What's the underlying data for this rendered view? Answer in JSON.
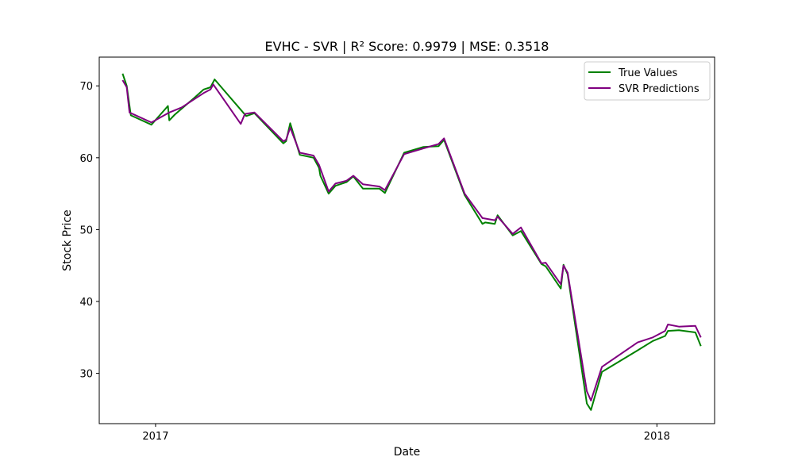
{
  "chart_data": {
    "type": "line",
    "title": "EVHC - SVR | R² Score: 0.9979 | MSE: 0.3518",
    "xlabel": "Date",
    "ylabel": "Stock Price",
    "xlim": [
      "2016-11-21",
      "2018-02-12"
    ],
    "ylim": [
      23,
      74
    ],
    "x_ticks": [
      {
        "date": "2017-01-01",
        "label": "2017"
      },
      {
        "date": "2018-01-01",
        "label": "2018"
      }
    ],
    "y_ticks": [
      30,
      40,
      50,
      60,
      70
    ],
    "grid": false,
    "legend_position": "top-right",
    "series": [
      {
        "name": "True Values",
        "color": "#008000",
        "points": [
          [
            "2016-12-08",
            71.7
          ],
          [
            "2016-12-11",
            70.0
          ],
          [
            "2016-12-14",
            65.9
          ],
          [
            "2016-12-29",
            64.6
          ],
          [
            "2017-01-10",
            67.2
          ],
          [
            "2017-01-11",
            65.2
          ],
          [
            "2017-01-15",
            66.0
          ],
          [
            "2017-01-29",
            68.3
          ],
          [
            "2017-02-05",
            69.5
          ],
          [
            "2017-02-10",
            69.8
          ],
          [
            "2017-02-13",
            70.9
          ],
          [
            "2017-03-08",
            65.8
          ],
          [
            "2017-03-14",
            66.2
          ],
          [
            "2017-04-04",
            62.0
          ],
          [
            "2017-04-06",
            62.3
          ],
          [
            "2017-04-09",
            64.8
          ],
          [
            "2017-04-16",
            60.4
          ],
          [
            "2017-04-26",
            60.0
          ],
          [
            "2017-04-30",
            58.6
          ],
          [
            "2017-05-01",
            57.5
          ],
          [
            "2017-05-07",
            55.0
          ],
          [
            "2017-05-12",
            56.1
          ],
          [
            "2017-05-20",
            56.6
          ],
          [
            "2017-05-25",
            57.4
          ],
          [
            "2017-06-01",
            55.7
          ],
          [
            "2017-06-13",
            55.7
          ],
          [
            "2017-06-17",
            55.1
          ],
          [
            "2017-07-01",
            60.7
          ],
          [
            "2017-07-15",
            61.5
          ],
          [
            "2017-07-26",
            61.6
          ],
          [
            "2017-07-30",
            62.5
          ],
          [
            "2017-08-14",
            54.8
          ],
          [
            "2017-08-27",
            50.8
          ],
          [
            "2017-08-29",
            51.0
          ],
          [
            "2017-09-05",
            50.8
          ],
          [
            "2017-09-07",
            52.0
          ],
          [
            "2017-09-18",
            49.2
          ],
          [
            "2017-09-24",
            49.8
          ],
          [
            "2017-10-09",
            45.2
          ],
          [
            "2017-10-12",
            44.9
          ],
          [
            "2017-10-23",
            41.8
          ],
          [
            "2017-10-25",
            45.1
          ],
          [
            "2017-10-28",
            43.8
          ],
          [
            "2017-11-11",
            25.8
          ],
          [
            "2017-11-14",
            24.9
          ],
          [
            "2017-11-22",
            30.2
          ],
          [
            "2017-12-18",
            33.2
          ],
          [
            "2017-12-29",
            34.5
          ],
          [
            "2018-01-07",
            35.2
          ],
          [
            "2018-01-09",
            35.9
          ],
          [
            "2018-01-17",
            36.0
          ],
          [
            "2018-01-29",
            35.7
          ],
          [
            "2018-02-02",
            33.8
          ]
        ]
      },
      {
        "name": "SVR Predictions",
        "color": "#800080",
        "points": [
          [
            "2016-12-08",
            70.8
          ],
          [
            "2016-12-11",
            69.8
          ],
          [
            "2016-12-13",
            66.3
          ],
          [
            "2016-12-29",
            64.9
          ],
          [
            "2017-01-11",
            66.3
          ],
          [
            "2017-01-20",
            67.0
          ],
          [
            "2017-02-05",
            69.0
          ],
          [
            "2017-02-10",
            69.5
          ],
          [
            "2017-02-12",
            70.2
          ],
          [
            "2017-03-04",
            64.7
          ],
          [
            "2017-03-07",
            66.1
          ],
          [
            "2017-03-14",
            66.3
          ],
          [
            "2017-04-04",
            62.3
          ],
          [
            "2017-04-06",
            62.5
          ],
          [
            "2017-04-09",
            64.2
          ],
          [
            "2017-04-16",
            60.7
          ],
          [
            "2017-04-26",
            60.3
          ],
          [
            "2017-04-30",
            59.0
          ],
          [
            "2017-05-07",
            55.3
          ],
          [
            "2017-05-12",
            56.4
          ],
          [
            "2017-05-20",
            56.8
          ],
          [
            "2017-05-25",
            57.5
          ],
          [
            "2017-06-01",
            56.3
          ],
          [
            "2017-06-13",
            56.0
          ],
          [
            "2017-06-17",
            55.5
          ],
          [
            "2017-07-01",
            60.5
          ],
          [
            "2017-07-15",
            61.3
          ],
          [
            "2017-07-26",
            61.9
          ],
          [
            "2017-07-30",
            62.7
          ],
          [
            "2017-08-14",
            55.0
          ],
          [
            "2017-08-27",
            51.6
          ],
          [
            "2017-09-05",
            51.3
          ],
          [
            "2017-09-07",
            51.8
          ],
          [
            "2017-09-18",
            49.4
          ],
          [
            "2017-09-24",
            50.3
          ],
          [
            "2017-10-09",
            45.3
          ],
          [
            "2017-10-12",
            45.4
          ],
          [
            "2017-10-23",
            42.4
          ],
          [
            "2017-10-25",
            45.0
          ],
          [
            "2017-10-28",
            44.0
          ],
          [
            "2017-11-11",
            27.5
          ],
          [
            "2017-11-14",
            26.2
          ],
          [
            "2017-11-22",
            30.9
          ],
          [
            "2017-12-18",
            34.3
          ],
          [
            "2017-12-29",
            35.0
          ],
          [
            "2018-01-07",
            35.9
          ],
          [
            "2018-01-09",
            36.8
          ],
          [
            "2018-01-17",
            36.5
          ],
          [
            "2018-01-29",
            36.6
          ],
          [
            "2018-02-02",
            35.0
          ]
        ]
      }
    ]
  }
}
